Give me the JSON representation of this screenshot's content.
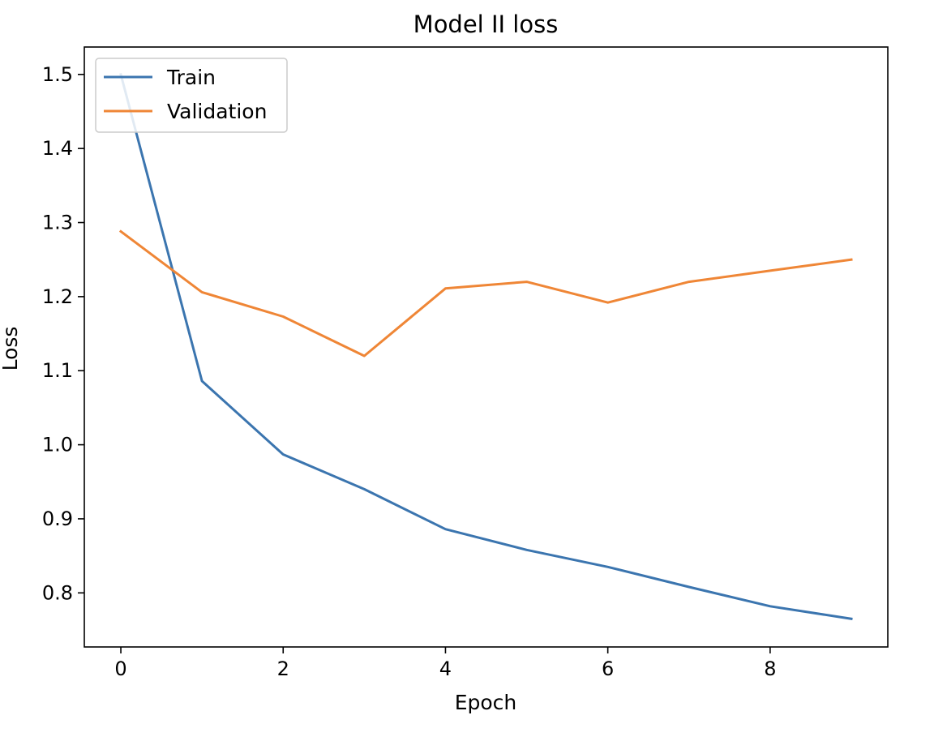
{
  "chart_data": {
    "type": "line",
    "title": "Model II loss",
    "xlabel": "Epoch",
    "ylabel": "Loss",
    "x": [
      0,
      1,
      2,
      3,
      4,
      5,
      6,
      7,
      8,
      9
    ],
    "xlim": [
      -0.45,
      9.45
    ],
    "ylim": [
      0.727,
      1.537
    ],
    "xticks": [
      0,
      2,
      4,
      6,
      8
    ],
    "yticks": [
      0.8,
      0.9,
      1.0,
      1.1,
      1.2,
      1.3,
      1.4,
      1.5
    ],
    "ytick_labels": [
      "0.8",
      "0.9",
      "1.0",
      "1.1",
      "1.2",
      "1.3",
      "1.4",
      "1.5"
    ],
    "grid": false,
    "legend_position": "top-left",
    "series": [
      {
        "name": "Train",
        "color": "#3b75af",
        "values": [
          1.5,
          1.086,
          0.987,
          0.94,
          0.886,
          0.858,
          0.835,
          0.808,
          0.782,
          0.765
        ]
      },
      {
        "name": "Validation",
        "color": "#ef8636",
        "values": [
          1.288,
          1.206,
          1.173,
          1.12,
          1.211,
          1.22,
          1.192,
          1.22,
          1.235,
          1.25
        ]
      }
    ]
  }
}
